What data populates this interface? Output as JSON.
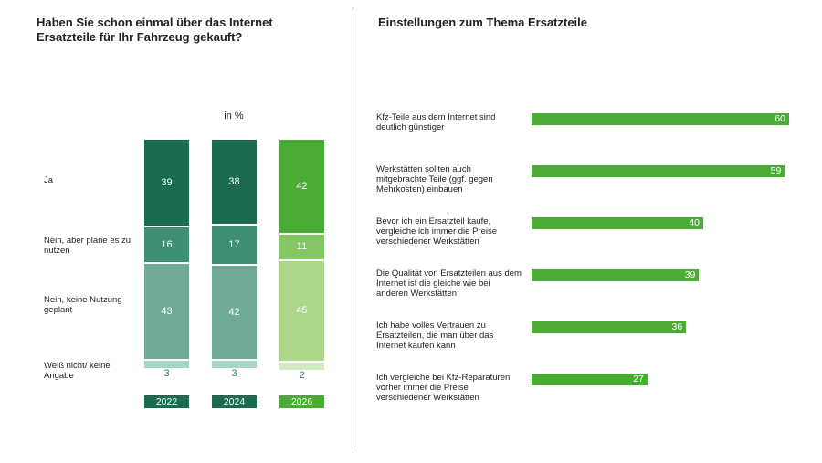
{
  "left_title": "Haben Sie schon einmal über das Internet Ersatzteile für Ihr Fahrzeug gekauft?",
  "right_title": "Einstellungen zum Thema Ersatzteile",
  "unit_label": "in %",
  "colors": {
    "dark_green": "#1b6b4f",
    "mid_green": "#3f8f75",
    "light_teal": "#6fab96",
    "pale_teal": "#a9d3c2",
    "bright_green": "#4aac35",
    "lime_mid": "#83c764",
    "lime_light": "#acd68a",
    "lime_pale": "#d2eabf"
  },
  "chart_data": [
    {
      "type": "bar",
      "stacked": true,
      "title": "Haben Sie schon einmal über das Internet Ersatzteile für Ihr Fahrzeug gekauft?",
      "unit": "in %",
      "categories": [
        "2022",
        "2024",
        "2026"
      ],
      "series": [
        {
          "name": "Ja",
          "values": [
            39,
            38,
            42
          ]
        },
        {
          "name": "Nein, aber plane es zu nutzen",
          "values": [
            16,
            17,
            11
          ]
        },
        {
          "name": "Nein, keine Nutzung geplant",
          "values": [
            43,
            42,
            45
          ]
        },
        {
          "name": "Weiß nicht/ keine Angabe",
          "values": [
            3,
            3,
            2
          ]
        }
      ]
    },
    {
      "type": "bar",
      "orientation": "horizontal",
      "title": "Einstellungen zum Thema Ersatzteile",
      "categories": [
        "Kfz-Teile aus dem Internet sind deutlich günstiger",
        "Werkstätten sollten auch mitgebrachte Teile (ggf. gegen Mehrkosten) einbauen",
        "Bevor ich ein Ersatzteil kaufe, vergleiche ich immer die Preise verschiedener Werkstätten",
        "Die Qualität von Ersatzteilen aus dem Internet ist die gleiche wie bei anderen Werkstätten",
        "Ich habe volles Vertrauen zu Ersatzteilen, die man über das Internet kaufen kann",
        "Ich vergleiche bei Kfz-Reparaturen vorher immer die Preise verschiedener Werkstätten"
      ],
      "values": [
        60,
        59,
        40,
        39,
        36,
        27
      ],
      "xlim": [
        0,
        60
      ]
    }
  ]
}
